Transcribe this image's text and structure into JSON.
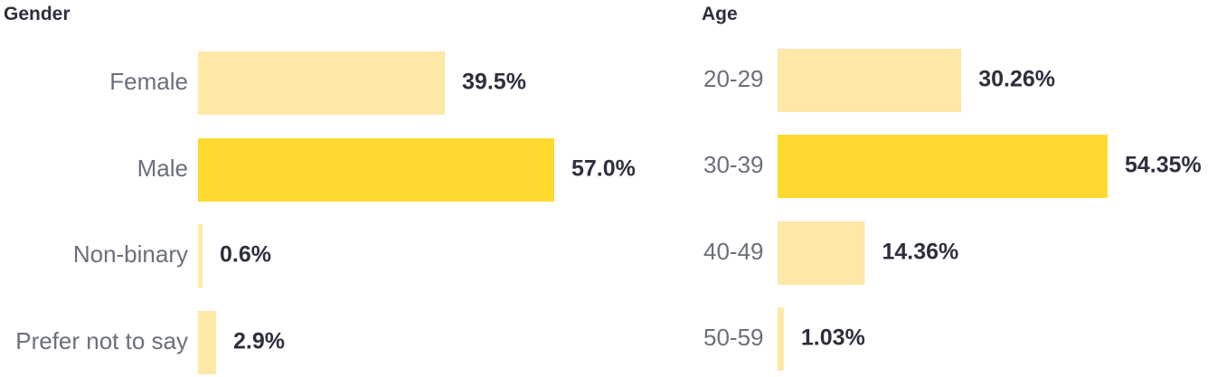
{
  "chart_data": [
    {
      "type": "bar",
      "orientation": "horizontal",
      "title": "Gender",
      "categories": [
        "Female",
        "Male",
        "Non-binary",
        "Prefer not to say"
      ],
      "values": [
        39.5,
        57.0,
        0.6,
        2.9
      ],
      "value_labels": [
        "39.5%",
        "57.0%",
        "0.6%",
        "2.9%"
      ],
      "xlim": [
        0,
        57.0
      ],
      "grid": false,
      "colors": {
        "highlight": "#ffd92e",
        "normal": "#ffe7a8"
      },
      "highlight_index": 1
    },
    {
      "type": "bar",
      "orientation": "horizontal",
      "title": "Age",
      "categories": [
        "20-29",
        "30-39",
        "40-49",
        "50-59"
      ],
      "values": [
        30.26,
        54.35,
        14.36,
        1.03
      ],
      "value_labels": [
        "30.26%",
        "54.35%",
        "14.36%",
        "1.03%"
      ],
      "xlim": [
        0,
        54.35
      ],
      "grid": false,
      "colors": {
        "highlight": "#ffd92e",
        "normal": "#ffe7a8"
      },
      "highlight_index": 1
    }
  ]
}
